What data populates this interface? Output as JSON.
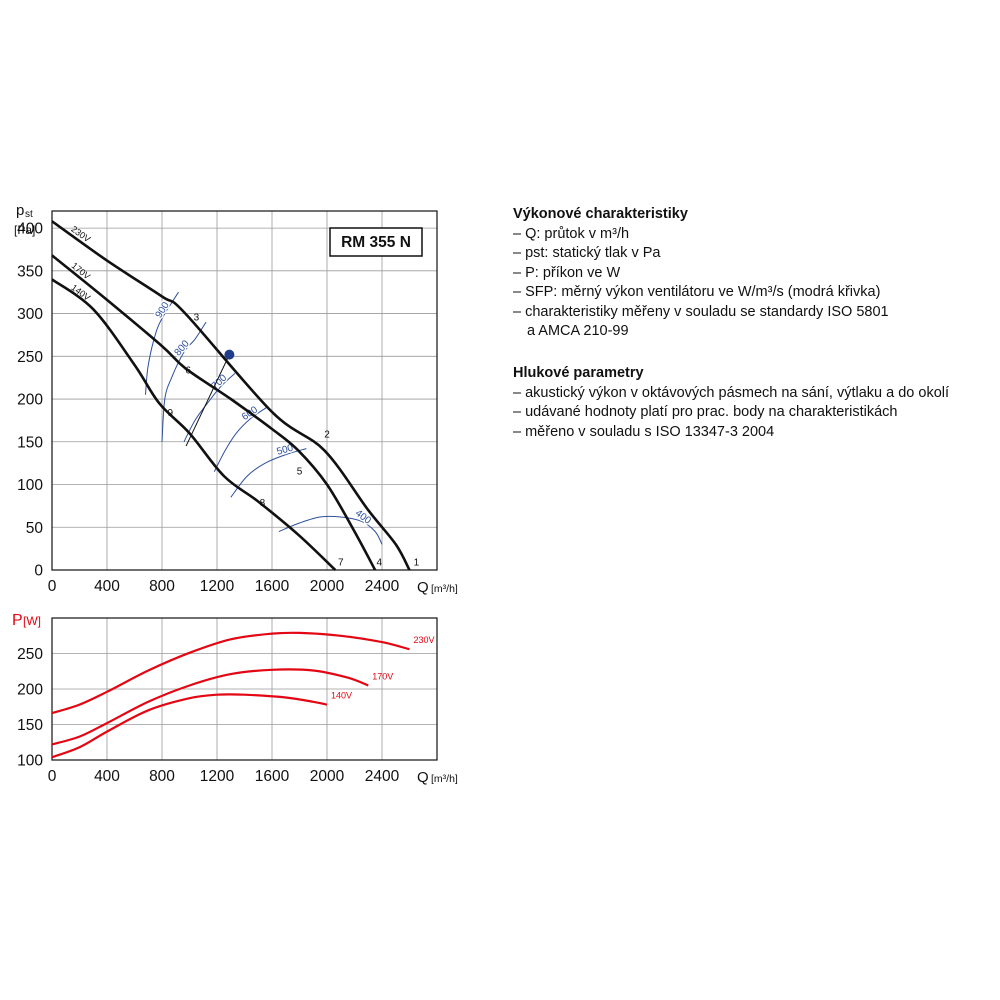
{
  "chart_data": [
    {
      "type": "line",
      "model_label": "RM 355 N",
      "ylabel_main": "p",
      "ylabel_sub": "st",
      "ylabel_unit": "[Pa]",
      "xlabel": "Q",
      "xlabel_unit": "[m³/h]",
      "xlim": [
        0,
        2800
      ],
      "ylim": [
        0,
        420
      ],
      "xticks": [
        "0",
        "400",
        "800",
        "1200",
        "1600",
        "2000",
        "2400"
      ],
      "yticks": [
        "0",
        "50",
        "100",
        "150",
        "200",
        "250",
        "300",
        "350",
        "400"
      ],
      "grid": true,
      "series": [
        {
          "name": "230V",
          "color": "#111111",
          "points": [
            [
              0,
              408
            ],
            [
              400,
              362
            ],
            [
              800,
              320
            ],
            [
              970,
              300
            ],
            [
              1600,
              185
            ],
            [
              1980,
              140
            ],
            [
              2300,
              70
            ],
            [
              2500,
              30
            ],
            [
              2600,
              0
            ]
          ]
        },
        {
          "name": "170V",
          "color": "#111111",
          "points": [
            [
              0,
              368
            ],
            [
              400,
              316
            ],
            [
              800,
              262
            ],
            [
              970,
              236
            ],
            [
              1300,
              200
            ],
            [
              1600,
              165
            ],
            [
              1790,
              140
            ],
            [
              2000,
              100
            ],
            [
              2200,
              45
            ],
            [
              2350,
              0
            ]
          ]
        },
        {
          "name": "140V",
          "color": "#111111",
          "points": [
            [
              0,
              340
            ],
            [
              300,
              305
            ],
            [
              600,
              240
            ],
            [
              780,
              195
            ],
            [
              1000,
              160
            ],
            [
              1250,
              110
            ],
            [
              1500,
              80
            ],
            [
              1800,
              40
            ],
            [
              2060,
              0
            ]
          ]
        }
      ],
      "sfp_curves": [
        {
          "label": "900",
          "color": "#2d4f9e",
          "points": [
            [
              680,
              205
            ],
            [
              700,
              240
            ],
            [
              760,
              280
            ],
            [
              820,
              300
            ],
            [
              860,
              310
            ],
            [
              920,
              325
            ]
          ]
        },
        {
          "label": "800",
          "color": "#2d4f9e",
          "points": [
            [
              800,
              150
            ],
            [
              820,
              200
            ],
            [
              870,
              225
            ],
            [
              960,
              255
            ],
            [
              1040,
              270
            ],
            [
              1120,
              290
            ]
          ]
        },
        {
          "label": "700",
          "color": "#2d4f9e",
          "points": [
            [
              960,
              150
            ],
            [
              1040,
              175
            ],
            [
              1130,
              195
            ],
            [
              1230,
              215
            ],
            [
              1330,
              230
            ]
          ]
        },
        {
          "label": "600",
          "color": "#2d4f9e",
          "points": [
            [
              1180,
              115
            ],
            [
              1260,
              140
            ],
            [
              1340,
              160
            ],
            [
              1450,
              178
            ],
            [
              1560,
              190
            ]
          ]
        },
        {
          "label": "500",
          "color": "#2d4f9e",
          "points": [
            [
              1300,
              85
            ],
            [
              1420,
              110
            ],
            [
              1550,
              125
            ],
            [
              1700,
              135
            ],
            [
              1850,
              142
            ]
          ]
        },
        {
          "label": "400",
          "color": "#2d4f9e",
          "points": [
            [
              1650,
              45
            ],
            [
              1800,
              55
            ],
            [
              1950,
              62
            ],
            [
              2100,
              62
            ],
            [
              2250,
              57
            ],
            [
              2350,
              45
            ],
            [
              2400,
              30
            ]
          ]
        }
      ],
      "diagonal_lines": [
        {
          "color": "#111111",
          "points": [
            [
              975,
              145
            ],
            [
              1290,
              252
            ]
          ]
        }
      ],
      "point_numbers": [
        {
          "label": "1",
          "q": 2650,
          "p": 5
        },
        {
          "label": "2",
          "q": 2000,
          "p": 155
        },
        {
          "label": "3",
          "q": 1050,
          "p": 292
        },
        {
          "label": "4",
          "q": 2380,
          "p": 5
        },
        {
          "label": "5",
          "q": 1800,
          "p": 112
        },
        {
          "label": "6",
          "q": 990,
          "p": 230
        },
        {
          "label": "7",
          "q": 2100,
          "p": 5
        },
        {
          "label": "8",
          "q": 1530,
          "p": 75
        },
        {
          "label": "9",
          "q": 860,
          "p": 180
        }
      ],
      "operating_point": {
        "q": 1290,
        "p": 252,
        "color": "#1f3d8a"
      }
    },
    {
      "type": "line",
      "ylabel_main": "P",
      "ylabel_unit": "[W]",
      "ylabel_color": "#e30613",
      "xlabel": "Q",
      "xlabel_unit": "[m³/h]",
      "xlim": [
        0,
        2800
      ],
      "ylim": [
        100,
        300
      ],
      "xticks": [
        "0",
        "400",
        "800",
        "1200",
        "1600",
        "2000",
        "2400"
      ],
      "yticks": [
        "100",
        "150",
        "200",
        "250"
      ],
      "grid": true,
      "series": [
        {
          "name": "230V",
          "color": "#e30613",
          "points": [
            [
              0,
              166
            ],
            [
              200,
              178
            ],
            [
              400,
              196
            ],
            [
              700,
              226
            ],
            [
              1000,
              251
            ],
            [
              1300,
              270
            ],
            [
              1600,
              278
            ],
            [
              1800,
              279
            ],
            [
              2100,
              275
            ],
            [
              2400,
              266
            ],
            [
              2600,
              256
            ]
          ]
        },
        {
          "name": "170V",
          "color": "#e30613",
          "points": [
            [
              0,
              122
            ],
            [
              200,
              133
            ],
            [
              400,
              152
            ],
            [
              700,
              182
            ],
            [
              1000,
              205
            ],
            [
              1300,
              221
            ],
            [
              1600,
              227
            ],
            [
              1900,
              226
            ],
            [
              2150,
              216
            ],
            [
              2300,
              205
            ]
          ]
        },
        {
          "name": "140V",
          "color": "#e30613",
          "points": [
            [
              0,
              104
            ],
            [
              200,
              118
            ],
            [
              400,
              140
            ],
            [
              700,
              170
            ],
            [
              1000,
              187
            ],
            [
              1200,
              192
            ],
            [
              1400,
              192
            ],
            [
              1700,
              188
            ],
            [
              1900,
              182
            ],
            [
              2000,
              178
            ]
          ]
        }
      ]
    }
  ],
  "legend": {
    "section1_title": "Výkonové charakteristiky",
    "section1_lines": [
      "– Q: průtok v m³/h",
      "– pst: statický tlak v Pa",
      "– P: příkon ve W",
      "– SFP: měrný výkon ventilátoru ve W/m³/s (modrá křivka)",
      "– charakteristiky měřeny v souladu se standardy ISO 5801",
      "a AMCA 210-99"
    ],
    "section2_title": "Hlukové parametry",
    "section2_lines": [
      "– akustický výkon v oktávových pásmech na sání, výtlaku a do okolí",
      "– udávané hodnoty platí pro prac. body na charakteristikách",
      "– měřeno v souladu s ISO 13347-3 2004"
    ]
  }
}
